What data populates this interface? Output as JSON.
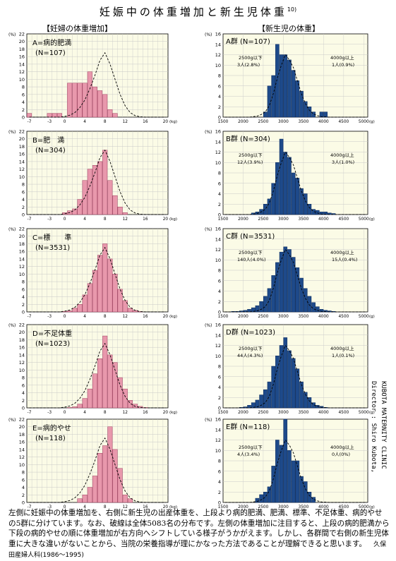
{
  "title": "妊娠中の体重増加と新生児体重",
  "title_ref": "10)",
  "left_header": "【妊婦の体重増加】",
  "right_header": "【新生児の体重】",
  "side_credit": [
    "KUBOTA MATERNITY CLINIC",
    "Director : Shiro Kubota,"
  ],
  "footer": {
    "text": "左側に妊娠中の体重増加を、右側に新生児の出産体重を、上段より病的肥満、肥満、標準、不足体重、病的やせの5群に分けています。なお、破線は全体5083名の分布です。左側の体重増加に注目すると、上段の病的肥満から下段の病的やせの順に体重増加が右方向へシフトしている様子がうかがえます。しかし、各群間で右側の新生児体重に大きな違いがないことから、当院の栄養指導が理にかなった方法であることが理解できると思います。",
    "source": "久保田産婦人科(1986〜1995)"
  },
  "colors": {
    "pink": "#e898ac",
    "navy": "#1e4a8a",
    "plot_bg": "#fbfbe6",
    "grid": "#c8c8c8"
  },
  "chart_data": [
    {
      "type": "bar",
      "panel": "left",
      "row": 0,
      "group_label": "A=病的肥満",
      "n_label": "(N=107)",
      "x_ticks": [
        "-7",
        "-3",
        "0",
        "4",
        "8",
        "12",
        "16",
        "20"
      ],
      "x_unit": "(kg)",
      "y_unit": "(%)",
      "y_ticks": [
        "0",
        "2",
        "4",
        "6",
        "8",
        "10",
        "12",
        "14",
        "16",
        "18",
        "20",
        "22"
      ],
      "ylim": [
        0,
        22
      ],
      "x": [
        -7,
        -6,
        -5,
        -4,
        -3,
        -2,
        -1,
        0,
        1,
        2,
        3,
        4,
        5,
        6,
        7,
        8,
        9,
        10,
        11,
        12,
        13,
        14,
        15,
        16,
        17,
        18,
        19,
        20
      ],
      "values": [
        1,
        0,
        0,
        0,
        1,
        1,
        1,
        0,
        9,
        9,
        9,
        9,
        12,
        8,
        7,
        6,
        2,
        1,
        0,
        0,
        0,
        0,
        0,
        0,
        0,
        0,
        0,
        0
      ],
      "dashed_total": [
        0,
        0,
        0,
        0,
        0,
        0,
        0,
        0.2,
        0.5,
        1.2,
        2.5,
        4.5,
        7.5,
        11,
        15,
        17,
        14,
        10,
        6,
        3,
        1.2,
        0.4,
        0.1,
        0,
        0,
        0,
        0,
        0
      ]
    },
    {
      "type": "bar",
      "panel": "left",
      "row": 1,
      "group_label": "B=肥　満",
      "n_label": "(N=304)",
      "x_ticks": [
        "-7",
        "-3",
        "0",
        "4",
        "8",
        "12",
        "16",
        "20"
      ],
      "x_unit": "(kg)",
      "y_unit": "(%)",
      "y_ticks": [
        "0",
        "2",
        "4",
        "6",
        "8",
        "10",
        "12",
        "14",
        "16",
        "18",
        "20",
        "22"
      ],
      "ylim": [
        0,
        22
      ],
      "x": [
        -7,
        -6,
        -5,
        -4,
        -3,
        -2,
        -1,
        0,
        1,
        2,
        3,
        4,
        5,
        6,
        7,
        8,
        9,
        10,
        11,
        12,
        13,
        14,
        15,
        16,
        17,
        18,
        19,
        20
      ],
      "values": [
        0,
        0,
        0,
        0,
        0,
        0,
        0,
        0.5,
        1,
        1.5,
        4,
        9,
        12,
        13,
        14,
        17,
        9,
        5,
        2,
        0.5,
        0,
        0,
        0,
        0,
        0,
        0,
        0,
        0
      ],
      "dashed_total": [
        0,
        0,
        0,
        0,
        0,
        0,
        0,
        0.2,
        0.5,
        1.2,
        2.5,
        4.5,
        7.5,
        11,
        15,
        17,
        14,
        10,
        6,
        3,
        1.2,
        0.4,
        0.1,
        0,
        0,
        0,
        0,
        0
      ]
    },
    {
      "type": "bar",
      "panel": "left",
      "row": 2,
      "group_label": "C=標　　準",
      "n_label": "(N=3531)",
      "x_ticks": [
        "-7",
        "-3",
        "0",
        "4",
        "8",
        "12",
        "16",
        "20"
      ],
      "x_unit": "(kg)",
      "y_unit": "(%)",
      "y_ticks": [
        "0",
        "2",
        "4",
        "6",
        "8",
        "10",
        "12",
        "14",
        "16",
        "18",
        "20",
        "22"
      ],
      "ylim": [
        0,
        22
      ],
      "x": [
        -7,
        -6,
        -5,
        -4,
        -3,
        -2,
        -1,
        0,
        1,
        2,
        3,
        4,
        5,
        6,
        7,
        8,
        9,
        10,
        11,
        12,
        13,
        14,
        15,
        16,
        17,
        18,
        19,
        20
      ],
      "values": [
        0,
        0,
        0,
        0,
        0,
        0,
        0,
        0.1,
        0.3,
        1,
        2,
        4.5,
        7.5,
        11,
        15,
        18,
        14,
        10,
        6,
        3,
        1,
        0.4,
        0.1,
        0,
        0,
        0,
        0,
        0
      ],
      "dashed_total": [
        0,
        0,
        0,
        0,
        0,
        0,
        0,
        0.2,
        0.5,
        1.2,
        2.5,
        4.5,
        7.5,
        11,
        15,
        17,
        14,
        10,
        6,
        3,
        1.2,
        0.4,
        0.1,
        0,
        0,
        0,
        0,
        0
      ]
    },
    {
      "type": "bar",
      "panel": "left",
      "row": 3,
      "group_label": "D=不足体重",
      "n_label": "(N=1023)",
      "x_ticks": [
        "-7",
        "-3",
        "0",
        "4",
        "8",
        "12",
        "16",
        "20"
      ],
      "x_unit": "(kg)",
      "y_unit": "(%)",
      "y_ticks": [
        "0",
        "2",
        "4",
        "6",
        "8",
        "10",
        "12",
        "14",
        "16",
        "18",
        "20",
        "22"
      ],
      "ylim": [
        0,
        22
      ],
      "x": [
        -7,
        -6,
        -5,
        -4,
        -3,
        -2,
        -1,
        0,
        1,
        2,
        3,
        4,
        5,
        6,
        7,
        8,
        9,
        10,
        11,
        12,
        13,
        14,
        15,
        16,
        17,
        18,
        19,
        20
      ],
      "values": [
        0,
        0,
        0,
        0,
        0,
        0,
        0,
        0,
        0.1,
        0.3,
        1,
        2.5,
        5,
        9,
        13,
        19,
        14,
        12,
        8,
        5,
        2,
        1,
        0.4,
        0.1,
        0,
        0,
        0,
        0
      ],
      "dashed_total": [
        0,
        0,
        0,
        0,
        0,
        0,
        0,
        0.2,
        0.5,
        1.2,
        2.5,
        4.5,
        7.5,
        11,
        15,
        17,
        14,
        10,
        6,
        3,
        1.2,
        0.4,
        0.1,
        0,
        0,
        0,
        0,
        0
      ]
    },
    {
      "type": "bar",
      "panel": "left",
      "row": 4,
      "group_label": "E=病的やせ",
      "n_label": "(N=118)",
      "x_ticks": [
        "-7",
        "-3",
        "0",
        "4",
        "8",
        "12",
        "16",
        "20"
      ],
      "x_unit": "(kg)",
      "y_unit": "(%)",
      "y_ticks": [
        "0",
        "2",
        "4",
        "6",
        "8",
        "10",
        "12",
        "14",
        "16",
        "18",
        "20",
        "22"
      ],
      "ylim": [
        0,
        22
      ],
      "x": [
        -7,
        -6,
        -5,
        -4,
        -3,
        -2,
        -1,
        0,
        1,
        2,
        3,
        4,
        5,
        6,
        7,
        8,
        9,
        10,
        11,
        12,
        13,
        14,
        15,
        16,
        17,
        18,
        19,
        20
      ],
      "values": [
        0,
        0,
        0,
        0,
        0,
        0,
        0,
        0,
        0,
        0,
        1,
        2,
        4,
        7,
        13,
        15,
        20,
        14,
        9,
        2,
        1,
        0,
        0,
        0,
        0,
        0,
        0,
        0
      ],
      "dashed_total": [
        0,
        0,
        0,
        0,
        0,
        0,
        0,
        0.2,
        0.5,
        1.2,
        2.5,
        4.5,
        7.5,
        11,
        15,
        17,
        14,
        10,
        6,
        3,
        1.2,
        0.4,
        0.1,
        0,
        0,
        0,
        0,
        0
      ]
    },
    {
      "type": "bar",
      "panel": "right",
      "row": 0,
      "group_label": "A群",
      "n_label": "(N=107)",
      "x_ticks": [
        "1500",
        "2000",
        "2500",
        "3000",
        "3500",
        "4000",
        "4500",
        "5000"
      ],
      "x_unit": "(g)",
      "y_unit": "(%)",
      "y_ticks": [
        "0",
        "2",
        "4",
        "6",
        "8",
        "10",
        "12",
        "14",
        "16"
      ],
      "ylim": [
        0,
        16
      ],
      "x": [
        1500,
        1600,
        1700,
        1800,
        1900,
        2000,
        2100,
        2200,
        2300,
        2400,
        2500,
        2600,
        2700,
        2800,
        2900,
        3000,
        3100,
        3200,
        3300,
        3400,
        3500,
        3600,
        3700,
        3800,
        3900,
        4000,
        4100,
        4200,
        4300,
        4400,
        4500,
        4600,
        4700,
        4800,
        4900,
        5000
      ],
      "values": [
        0,
        0,
        0,
        0,
        0,
        0,
        0,
        0,
        0,
        0,
        1,
        6,
        8,
        14,
        12,
        12,
        11,
        9,
        7,
        5,
        3,
        2,
        1,
        0,
        1,
        1,
        0,
        0,
        0,
        0,
        0,
        0,
        0,
        0,
        0,
        0
      ],
      "dashed_total": [
        0,
        0,
        0,
        0,
        0,
        0,
        0,
        0.1,
        0.2,
        0.5,
        1,
        2.2,
        4.5,
        7.5,
        10,
        12,
        11,
        9.5,
        7,
        4.5,
        2.6,
        1.3,
        0.6,
        0.3,
        0.1,
        0.05,
        0,
        0,
        0,
        0,
        0,
        0,
        0,
        0,
        0,
        0
      ],
      "note_low": [
        "2500g以下",
        "3人(2.8%)"
      ],
      "note_high": [
        "4000g以上",
        "1人(0.9%)"
      ]
    },
    {
      "type": "bar",
      "panel": "right",
      "row": 1,
      "group_label": "B群",
      "n_label": "(N=304)",
      "x_ticks": [
        "1500",
        "2000",
        "2500",
        "3000",
        "3500",
        "4000",
        "4500",
        "5000"
      ],
      "x_unit": "(g)",
      "y_unit": "(%)",
      "y_ticks": [
        "0",
        "2",
        "4",
        "6",
        "8",
        "10",
        "12",
        "14",
        "16"
      ],
      "ylim": [
        0,
        16
      ],
      "x": [
        1500,
        1600,
        1700,
        1800,
        1900,
        2000,
        2100,
        2200,
        2300,
        2400,
        2500,
        2600,
        2700,
        2800,
        2900,
        3000,
        3100,
        3200,
        3300,
        3400,
        3500,
        3600,
        3700,
        3800,
        3900,
        4000,
        4100,
        4200,
        4300,
        4400,
        4500,
        4600,
        4700,
        4800,
        4900,
        5000
      ],
      "values": [
        0,
        0,
        0,
        0,
        0,
        0,
        0,
        0.3,
        0.5,
        1,
        2,
        3,
        6,
        10,
        14.5,
        12,
        11,
        8,
        7,
        5,
        4,
        2,
        1,
        0.8,
        0.5,
        0.5,
        0.3,
        0.2,
        0,
        0,
        0,
        0,
        0,
        0,
        0,
        0
      ],
      "dashed_total": [
        0,
        0,
        0,
        0,
        0,
        0,
        0,
        0.1,
        0.2,
        0.5,
        1,
        2.2,
        4.5,
        7.5,
        10,
        12,
        11,
        9.5,
        7,
        4.5,
        2.6,
        1.3,
        0.6,
        0.3,
        0.1,
        0.05,
        0,
        0,
        0,
        0,
        0,
        0,
        0,
        0,
        0,
        0
      ],
      "note_low": [
        "2500g以下",
        "12人(3.9%)"
      ],
      "note_high": [
        "4000g以上",
        "3人(1.0%)"
      ]
    },
    {
      "type": "bar",
      "panel": "right",
      "row": 2,
      "group_label": "C群",
      "n_label": "(N=3531)",
      "x_ticks": [
        "1500",
        "2000",
        "2500",
        "3000",
        "3500",
        "4000",
        "4500",
        "5000"
      ],
      "x_unit": "(g)",
      "y_unit": "(%)",
      "y_ticks": [
        "0",
        "2",
        "4",
        "6",
        "8",
        "10",
        "12",
        "14",
        "16"
      ],
      "ylim": [
        0,
        16
      ],
      "x": [
        1500,
        1600,
        1700,
        1800,
        1900,
        2000,
        2100,
        2200,
        2300,
        2400,
        2500,
        2600,
        2700,
        2800,
        2900,
        3000,
        3100,
        3200,
        3300,
        3400,
        3500,
        3600,
        3700,
        3800,
        3900,
        4000,
        4100,
        4200,
        4300,
        4400,
        4500,
        4600,
        4700,
        4800,
        4900,
        5000
      ],
      "values": [
        0,
        0,
        0.1,
        0.1,
        0.2,
        0.3,
        0.5,
        0.8,
        1.2,
        2,
        3,
        4.5,
        7,
        9.5,
        11.5,
        12.5,
        12,
        10.5,
        8.5,
        6.5,
        4.5,
        3,
        1.8,
        1,
        0.5,
        0.3,
        0.2,
        0.1,
        0,
        0,
        0,
        0,
        0,
        0,
        0,
        0
      ],
      "dashed_total": [
        0,
        0,
        0,
        0,
        0,
        0,
        0,
        0.1,
        0.2,
        0.5,
        1,
        2.2,
        4.5,
        7.5,
        10,
        12,
        11,
        9.5,
        7,
        4.5,
        2.6,
        1.3,
        0.6,
        0.3,
        0.1,
        0.05,
        0,
        0,
        0,
        0,
        0,
        0,
        0,
        0,
        0,
        0
      ],
      "note_low": [
        "2500g以下",
        "140人(4.0%)"
      ],
      "note_high": [
        "4000g以上",
        "15人(0.4%)"
      ]
    },
    {
      "type": "bar",
      "panel": "right",
      "row": 3,
      "group_label": "D群",
      "n_label": "(N=1023)",
      "x_ticks": [
        "1500",
        "2000",
        "2500",
        "3000",
        "3500",
        "4000",
        "4500",
        "5000"
      ],
      "x_unit": "(g)",
      "y_unit": "(%)",
      "y_ticks": [
        "0",
        "2",
        "4",
        "6",
        "8",
        "10",
        "12",
        "14",
        "16"
      ],
      "ylim": [
        0,
        16
      ],
      "x": [
        1500,
        1600,
        1700,
        1800,
        1900,
        2000,
        2100,
        2200,
        2300,
        2400,
        2500,
        2600,
        2700,
        2800,
        2900,
        3000,
        3100,
        3200,
        3300,
        3400,
        3500,
        3600,
        3700,
        3800,
        3900,
        4000,
        4100,
        4200,
        4300,
        4400,
        4500,
        4600,
        4700,
        4800,
        4900,
        5000
      ],
      "values": [
        0,
        0,
        0,
        0,
        0.1,
        0.2,
        0.5,
        1,
        1.5,
        2.5,
        3.5,
        5,
        8,
        10,
        12,
        13.5,
        11,
        9.5,
        7.5,
        5,
        3,
        2,
        1,
        0.5,
        0.3,
        0.1,
        0,
        0,
        0,
        0,
        0,
        0,
        0,
        0,
        0,
        0
      ],
      "dashed_total": [
        0,
        0,
        0,
        0,
        0,
        0,
        0,
        0.1,
        0.2,
        0.5,
        1,
        2.2,
        4.5,
        7.5,
        10,
        12,
        11,
        9.5,
        7,
        4.5,
        2.6,
        1.3,
        0.6,
        0.3,
        0.1,
        0.05,
        0,
        0,
        0,
        0,
        0,
        0,
        0,
        0,
        0,
        0
      ],
      "note_low": [
        "2500g以下",
        "44人(4.3%)"
      ],
      "note_high": [
        "4000g以上",
        "1人(0.1%)"
      ]
    },
    {
      "type": "bar",
      "panel": "right",
      "row": 4,
      "group_label": "E群",
      "n_label": "(N=118)",
      "x_ticks": [
        "1500",
        "2000",
        "2500",
        "3000",
        "3500",
        "4000",
        "4500",
        "5000"
      ],
      "x_unit": "(g)",
      "y_unit": "(%)",
      "y_ticks": [
        "0",
        "2",
        "4",
        "6",
        "8",
        "10",
        "12",
        "14",
        "16"
      ],
      "ylim": [
        0,
        16
      ],
      "x": [
        1500,
        1600,
        1700,
        1800,
        1900,
        2000,
        2100,
        2200,
        2300,
        2400,
        2500,
        2600,
        2700,
        2800,
        2900,
        3000,
        3100,
        3200,
        3300,
        3400,
        3500,
        3600,
        3700,
        3800,
        3900,
        4000,
        4100,
        4200,
        4300,
        4400,
        4500,
        4600,
        4700,
        4800,
        4900,
        5000
      ],
      "values": [
        0,
        0,
        0,
        0,
        0,
        0,
        0,
        0,
        0.8,
        1.5,
        2,
        3,
        7,
        12,
        11,
        16,
        10,
        8,
        8,
        5,
        4,
        2,
        1,
        0,
        0,
        0,
        0,
        0,
        0,
        0,
        0,
        0,
        0,
        0,
        0,
        0
      ],
      "dashed_total": [
        0,
        0,
        0,
        0,
        0,
        0,
        0,
        0.1,
        0.2,
        0.5,
        1,
        2.2,
        4.5,
        7.5,
        10,
        12,
        11,
        9.5,
        7,
        4.5,
        2.6,
        1.3,
        0.6,
        0.3,
        0.1,
        0.05,
        0,
        0,
        0,
        0,
        0,
        0,
        0,
        0,
        0,
        0
      ],
      "note_low": [
        "2500g以下",
        "4人(3.4%)"
      ],
      "note_high": [
        "4000g以上",
        "0人(0%)"
      ]
    }
  ]
}
